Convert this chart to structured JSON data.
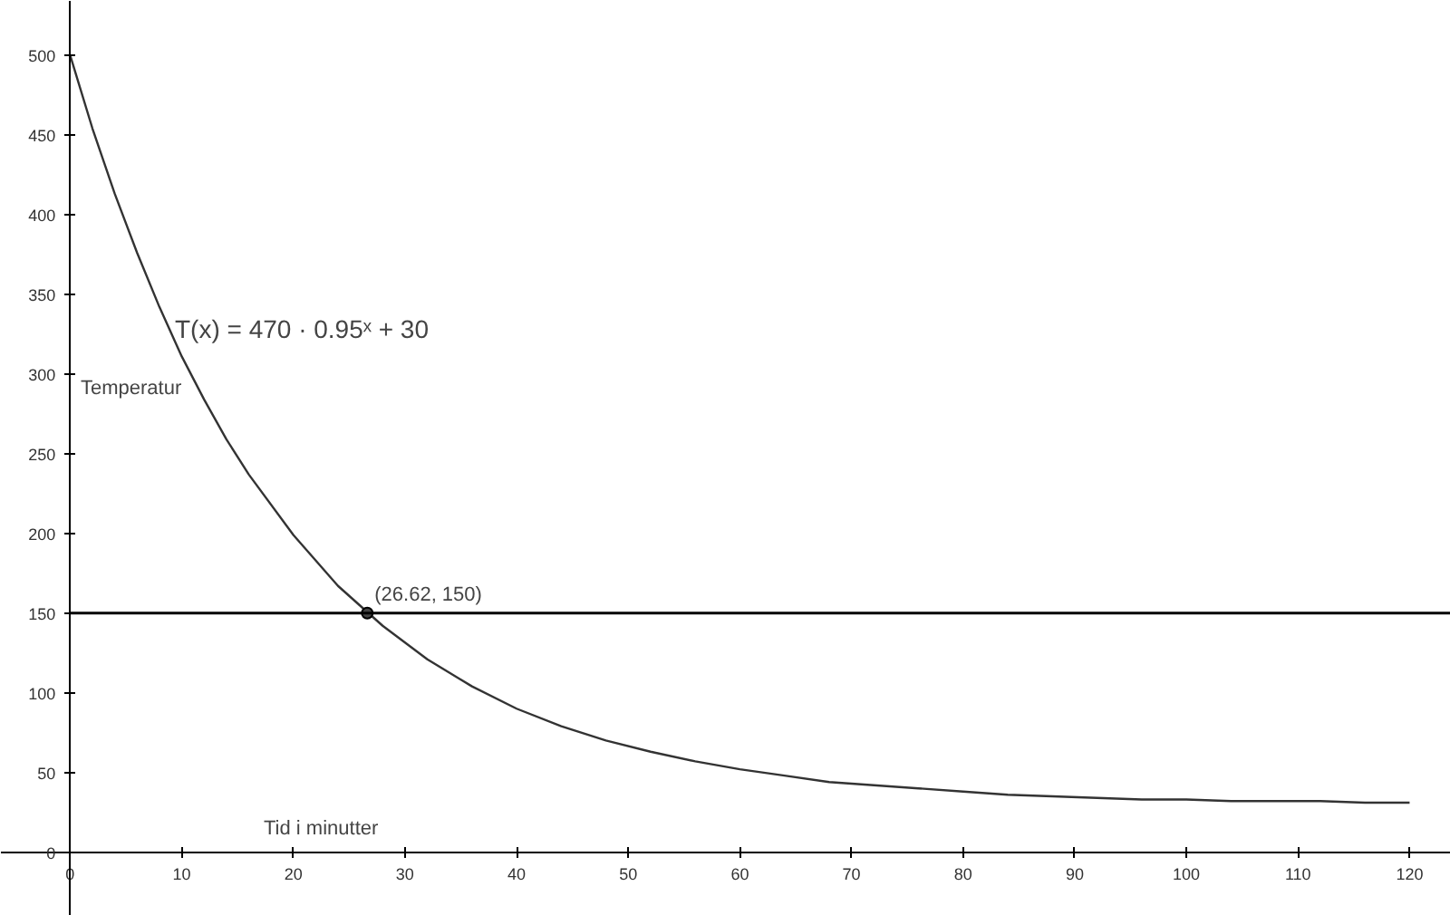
{
  "chart_data": {
    "type": "line",
    "xlabel": "Tid i minutter",
    "ylabel": "Temperatur",
    "annotations": [
      "T(x) = 470 · 0.95ˣ + 30",
      {
        "text": "(26.62, 150)",
        "x": 26.62,
        "y": 150
      }
    ],
    "series": [
      {
        "color": "#333333",
        "x": [
          0,
          2,
          4,
          6,
          8,
          10,
          12,
          14,
          16,
          20,
          24,
          28,
          32,
          36,
          40,
          44,
          48,
          52,
          56,
          60,
          64,
          68,
          72,
          76,
          80,
          84,
          88,
          92,
          96,
          100,
          104,
          108,
          112,
          116,
          120
        ],
        "values": [
          500,
          454,
          413,
          376,
          342,
          311,
          284,
          259,
          237,
          199,
          167,
          142,
          121,
          104,
          90,
          79,
          70,
          63,
          57,
          52,
          48,
          44,
          42,
          40,
          38,
          36,
          35,
          34,
          33,
          33,
          32,
          32,
          32,
          31,
          31
        ]
      },
      {
        "type": "scatter",
        "color": "#444444",
        "marker": "circle",
        "x": [
          26.62
        ],
        "values": [
          150
        ]
      }
    ],
    "ref_lines": [
      {
        "axis": "y",
        "value": 150,
        "color": "#000000"
      }
    ],
    "xlim": [
      -6.2,
      123.7
    ],
    "ylim": [
      -40,
      534
    ],
    "xticks": [
      0,
      10,
      20,
      30,
      40,
      50,
      60,
      70,
      80,
      90,
      100,
      110,
      120
    ],
    "yticks": [
      0,
      50,
      100,
      150,
      200,
      250,
      300,
      350,
      400,
      450,
      500
    ]
  }
}
